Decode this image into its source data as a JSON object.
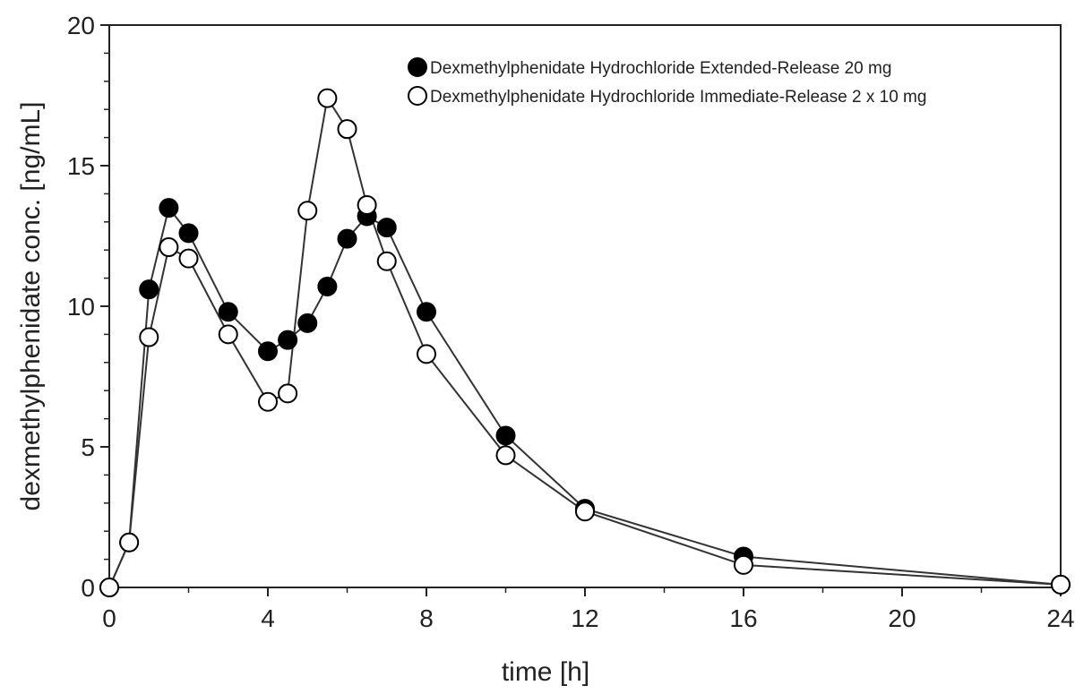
{
  "chart_data": {
    "type": "line",
    "xlabel": "time [h]",
    "ylabel": "dexmethylphenidate conc. [ng/mL]",
    "xlim": [
      0,
      24
    ],
    "ylim": [
      0,
      20
    ],
    "xticks": [
      0,
      4,
      8,
      12,
      16,
      20,
      24
    ],
    "xtick_labels": [
      "0",
      "4",
      "8",
      "12",
      "16",
      "20",
      "24"
    ],
    "yticks": [
      0,
      5,
      10,
      15,
      20
    ],
    "ytick_labels": [
      "0",
      "5",
      "10",
      "15",
      "20"
    ],
    "grid": false,
    "legend_position": "top-right",
    "series": [
      {
        "name": "Dexmethylphenidate Hydrochloride Extended-Release 20 mg",
        "marker": "filled-circle",
        "color": "#000000",
        "x": [
          0,
          0.5,
          1,
          1.5,
          2,
          3,
          4,
          4.5,
          5,
          5.5,
          6,
          6.5,
          7,
          8,
          10,
          12,
          16,
          24
        ],
        "y": [
          0,
          1.6,
          10.6,
          13.5,
          12.6,
          9.8,
          8.4,
          8.8,
          9.4,
          10.7,
          12.4,
          13.2,
          12.8,
          9.8,
          5.4,
          2.8,
          1.1,
          0.1
        ]
      },
      {
        "name": "Dexmethylphenidate Hydrochloride Immediate-Release 2 x 10 mg",
        "marker": "open-circle",
        "color": "#000000",
        "x": [
          0,
          0.5,
          1,
          1.5,
          2,
          3,
          4,
          4.5,
          5,
          5.5,
          6,
          6.5,
          7,
          8,
          10,
          12,
          16,
          24
        ],
        "y": [
          0,
          1.6,
          8.9,
          12.1,
          11.7,
          9.0,
          6.6,
          6.9,
          13.4,
          17.4,
          16.3,
          13.6,
          11.6,
          8.3,
          4.7,
          2.7,
          0.8,
          0.1
        ]
      }
    ]
  }
}
